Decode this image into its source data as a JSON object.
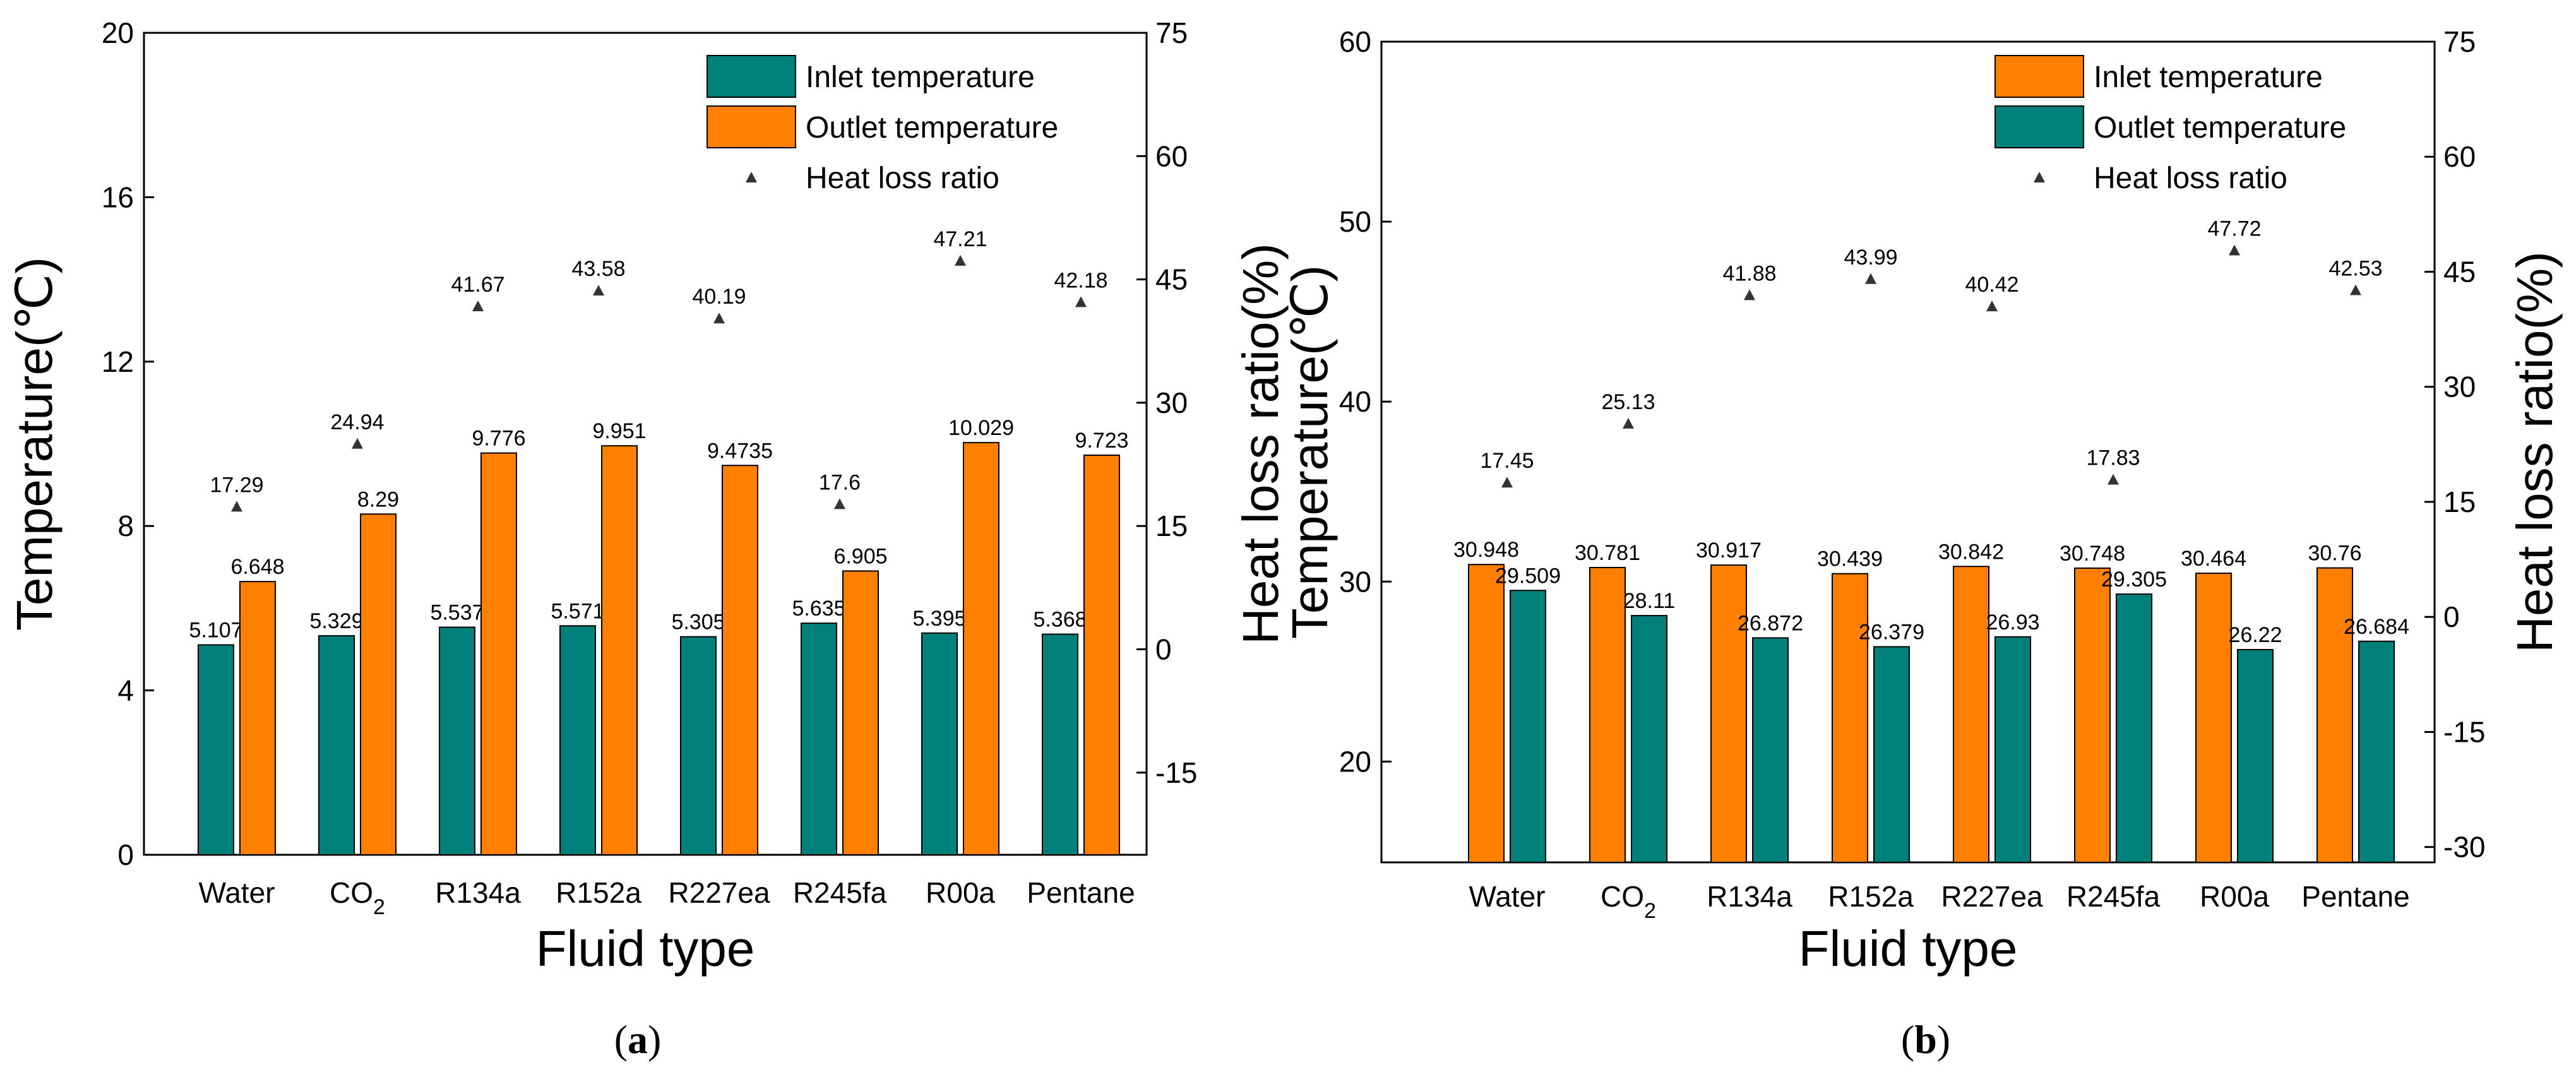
{
  "colors": {
    "teal": "#00807a",
    "orange": "#ff8000",
    "marker": "#333333",
    "axis": "#000000"
  },
  "chart_data": [
    {
      "type": "bar",
      "panel_label": "a",
      "xlabel": "Fluid type",
      "ylabel": "Temperature(℃)",
      "y2label": "Heat loss ratio(%)",
      "ylim": [
        0,
        20
      ],
      "yticks": [
        0,
        4,
        8,
        12,
        16,
        20
      ],
      "y2lim": [
        -25,
        75
      ],
      "y2ticks": [
        -15,
        0,
        15,
        30,
        45,
        60,
        75
      ],
      "categories": [
        "Water",
        "CO",
        "R134a",
        "R152a",
        "R227ea",
        "R245fa",
        "R00a",
        "Pentane"
      ],
      "category_subscripts": [
        "",
        "2",
        "",
        "",
        "",
        "",
        "",
        ""
      ],
      "series": [
        {
          "name": "Inlet temperature",
          "color": "#00807a",
          "values": [
            5.107,
            5.329,
            5.537,
            5.571,
            5.305,
            5.635,
            5.395,
            5.368
          ],
          "labels": [
            "5.107",
            "5.329",
            "5.537",
            "5.571",
            "5.305",
            "5.635",
            "5.395",
            "5.368"
          ]
        },
        {
          "name": "Outlet temperature",
          "color": "#ff8000",
          "values": [
            6.648,
            8.29,
            9.776,
            9.951,
            9.4735,
            6.905,
            10.029,
            9.723
          ],
          "labels": [
            "6.648",
            "8.29",
            "9.776",
            "9.951",
            "9.4735",
            "6.905",
            "10.029",
            "9.723"
          ]
        }
      ],
      "scatter": {
        "name": "Heat loss ratio",
        "values": [
          17.29,
          24.94,
          41.67,
          43.58,
          40.19,
          17.6,
          47.21,
          42.18
        ],
        "labels": [
          "17.29",
          "24.94",
          "41.67",
          "43.58",
          "40.19",
          "17.6",
          "47.21",
          "42.18"
        ]
      }
    },
    {
      "type": "bar",
      "panel_label": "b",
      "xlabel": "Fluid type",
      "ylabel": "Temperature(℃)",
      "y2label": "Heat loss ratio(%)",
      "ylim": [
        14.4,
        60
      ],
      "yticks": [
        20,
        30,
        40,
        50,
        60
      ],
      "y2lim": [
        -32,
        75
      ],
      "y2ticks": [
        -30,
        -15,
        0,
        15,
        30,
        45,
        60,
        75
      ],
      "categories": [
        "Water",
        "CO",
        "R134a",
        "R152a",
        "R227ea",
        "R245fa",
        "R00a",
        "Pentane"
      ],
      "category_subscripts": [
        "",
        "2",
        "",
        "",
        "",
        "",
        "",
        ""
      ],
      "series": [
        {
          "name": "Inlet temperature",
          "color": "#ff8000",
          "values": [
            30.948,
            30.781,
            30.917,
            30.439,
            30.842,
            30.748,
            30.464,
            30.76
          ],
          "labels": [
            "30.948",
            "30.781",
            "30.917",
            "30.439",
            "30.842",
            "30.748",
            "30.464",
            "30.76"
          ]
        },
        {
          "name": "Outlet temperature",
          "color": "#00807a",
          "values": [
            29.509,
            28.11,
            26.872,
            26.379,
            26.93,
            29.305,
            26.22,
            26.684
          ],
          "labels": [
            "29.509",
            "28.11",
            "26.872",
            "26.379",
            "26.93",
            "29.305",
            "26.22",
            "26.684"
          ]
        }
      ],
      "scatter": {
        "name": "Heat loss ratio",
        "values": [
          17.45,
          25.13,
          41.88,
          43.99,
          40.42,
          17.83,
          47.72,
          42.53
        ],
        "labels": [
          "17.45",
          "25.13",
          "41.88",
          "43.99",
          "40.42",
          "17.83",
          "47.72",
          "42.53"
        ]
      }
    }
  ]
}
